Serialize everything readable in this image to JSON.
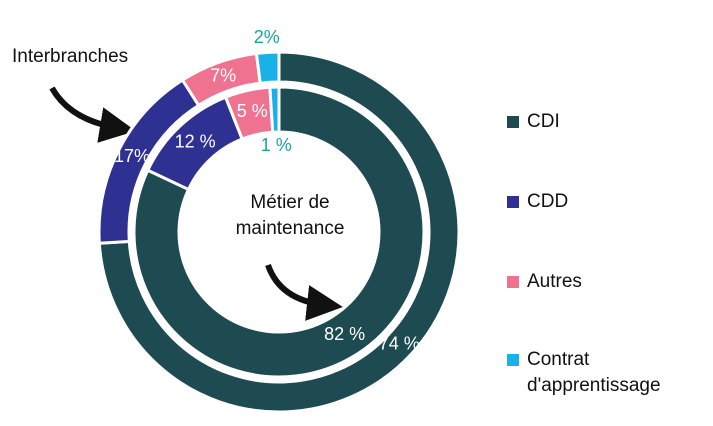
{
  "chart_data": {
    "type": "pie",
    "categories": [
      "CDI",
      "CDD",
      "Autres",
      "Contrat d'apprentissage"
    ],
    "colors": [
      "#1e4a52",
      "#2e3192",
      "#ef7290",
      "#1ab0e8"
    ],
    "series": [
      {
        "name": "Interbranches",
        "values": [
          74,
          17,
          7,
          2
        ],
        "value_labels": [
          "74 %",
          "17%",
          "7%",
          "2%"
        ]
      },
      {
        "name": "Métier de maintenance",
        "values": [
          82,
          12,
          5,
          1
        ],
        "value_labels": [
          "82 %",
          "12 %",
          "5 %",
          "1 %"
        ]
      }
    ]
  }
}
